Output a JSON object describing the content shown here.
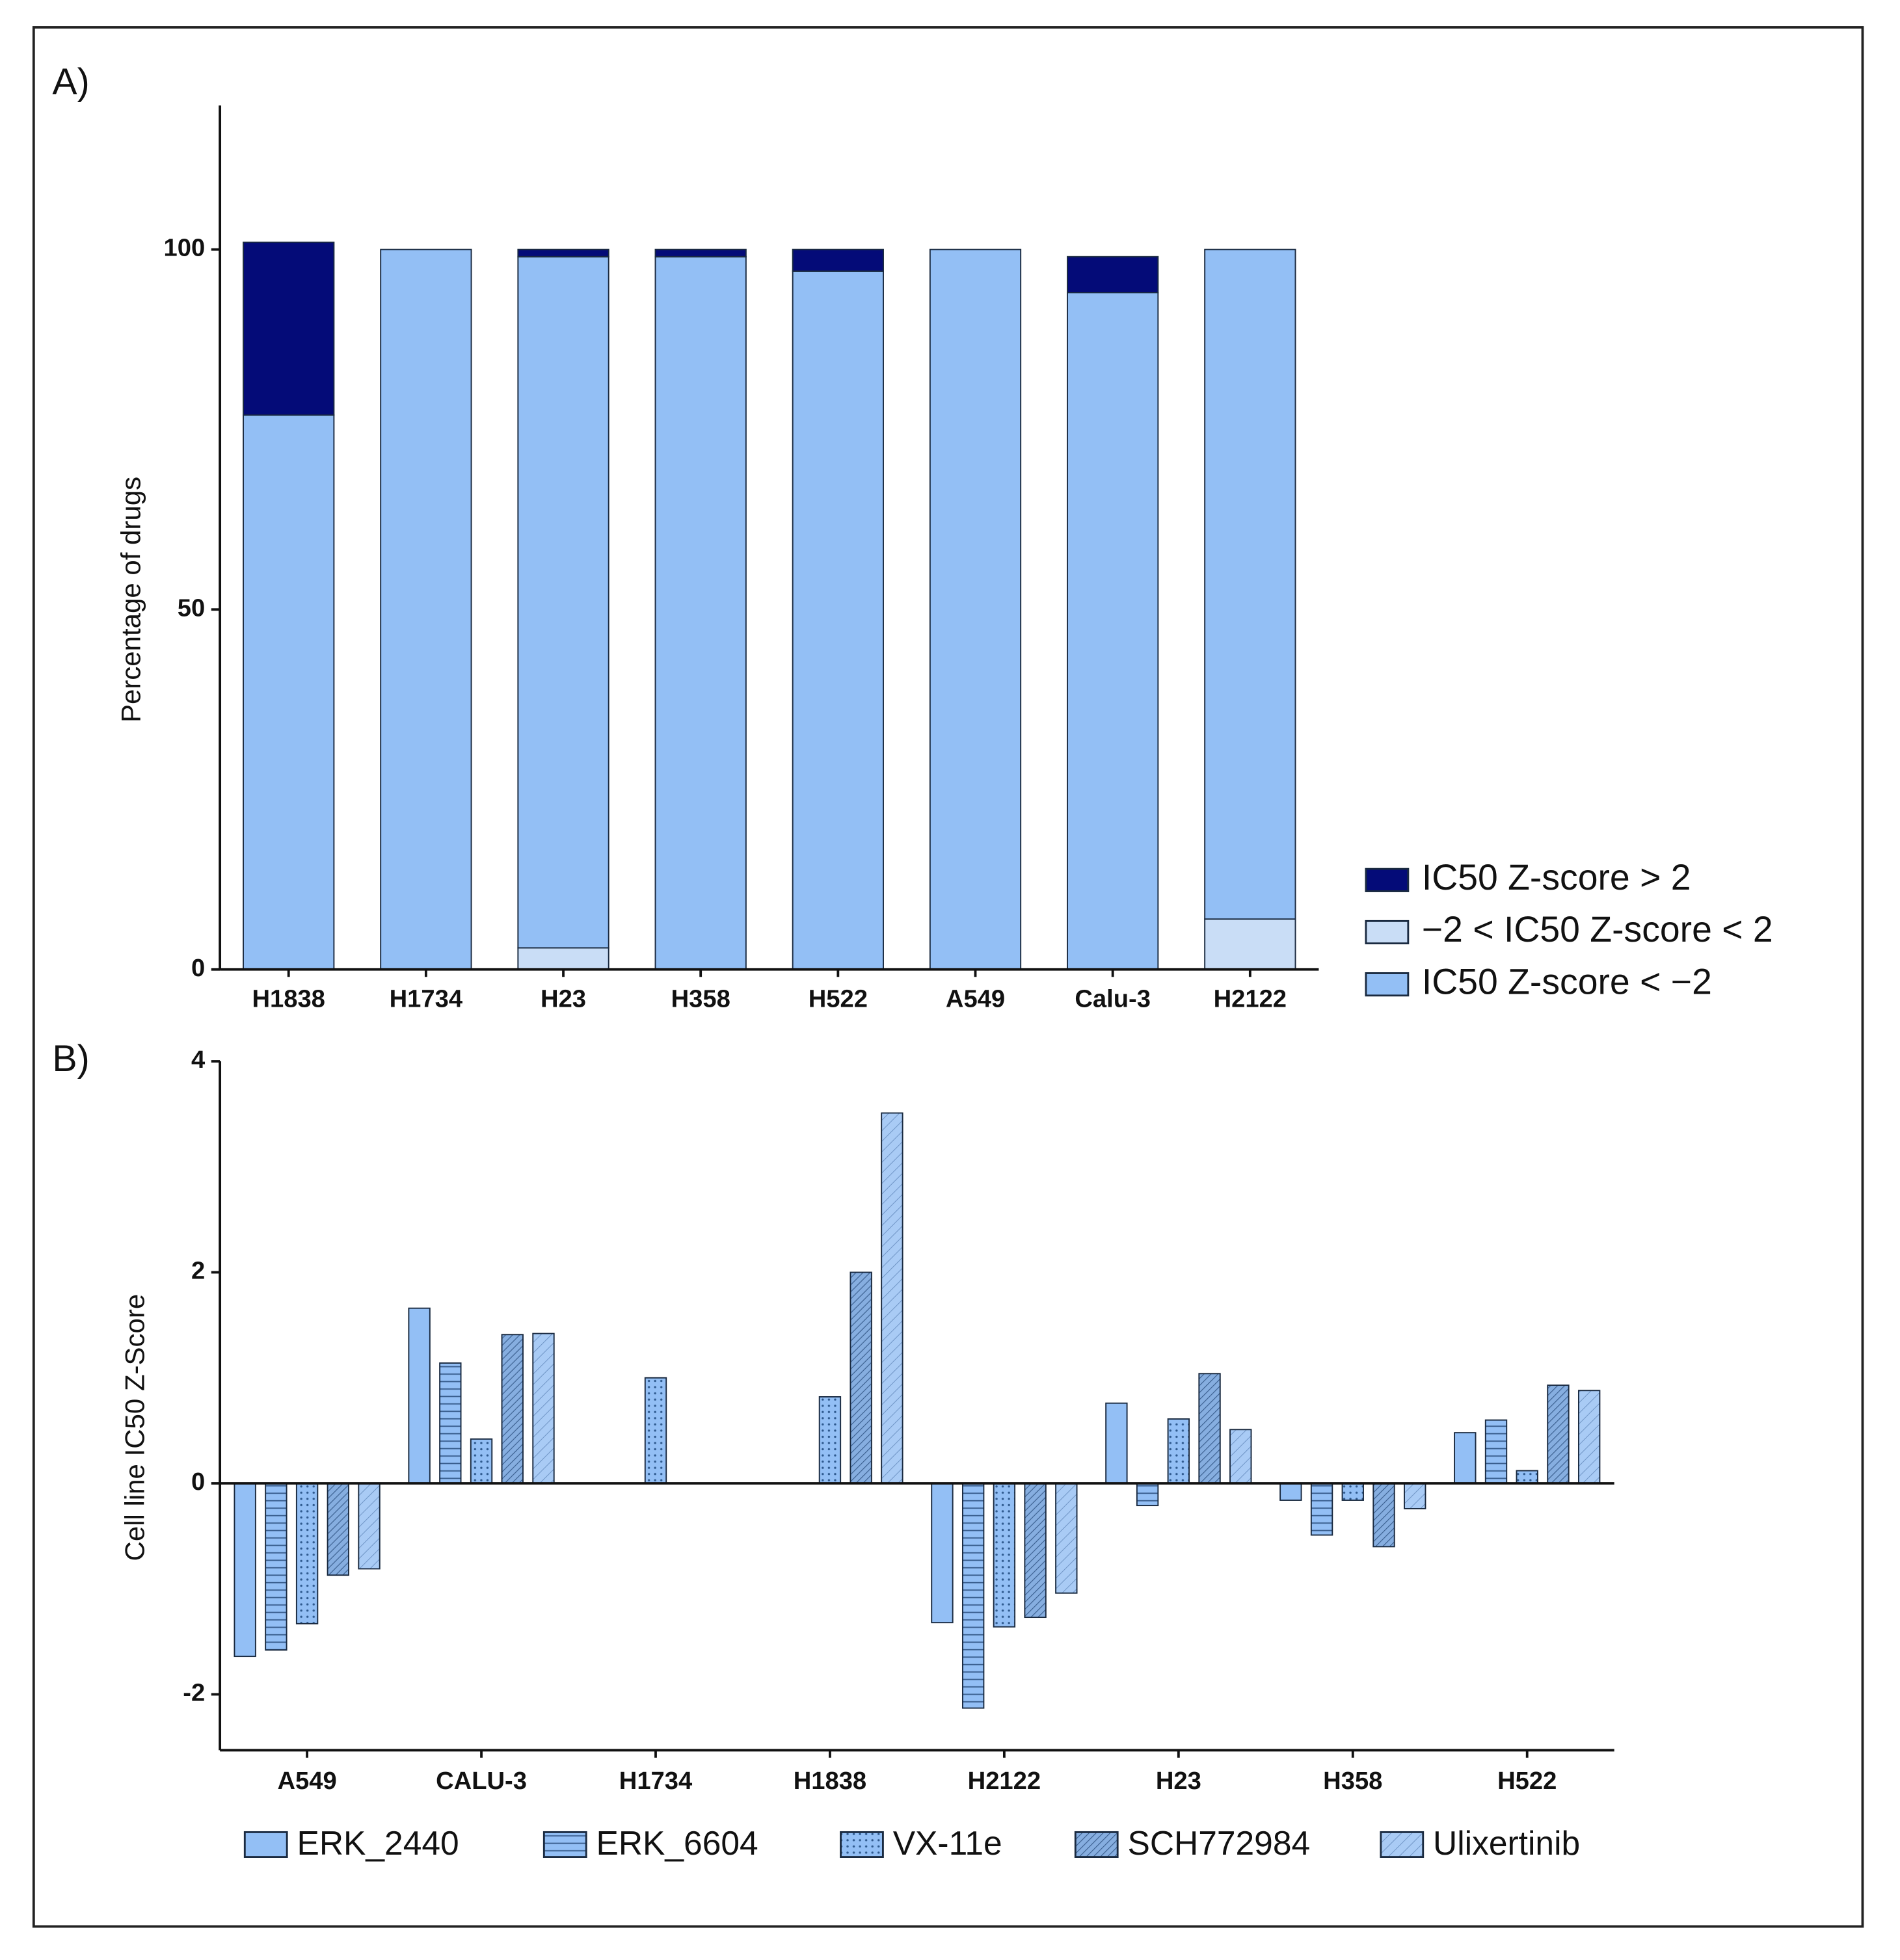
{
  "chart_data": [
    {
      "type": "stacked-bar",
      "panel_label": "A)",
      "y_label": "Percentage of drugs",
      "categories": [
        "H1838",
        "H1734",
        "H23",
        "H358",
        "H522",
        "A549",
        "Calu-3",
        "H2122"
      ],
      "ylim": [
        0,
        120
      ],
      "yticks": [
        0,
        50,
        100
      ],
      "legend": "right",
      "series": [
        {
          "name": "−2 < IC50 Z-score < 2",
          "color": "#c9ddf6",
          "values": [
            0,
            0,
            3,
            0,
            0,
            0,
            0,
            7
          ]
        },
        {
          "name": "IC50 Z-score < −2",
          "color": "#93bff5",
          "values": [
            77,
            100,
            96,
            99,
            97,
            100,
            94,
            93
          ]
        },
        {
          "name": "IC50 Z-score > 2",
          "color": "#040b78",
          "values": [
            24,
            0,
            1,
            1,
            3,
            0,
            5,
            0
          ]
        }
      ]
    },
    {
      "type": "grouped-bar",
      "panel_label": "B)",
      "y_label": "Cell line IC50 Z-Score",
      "categories": [
        "A549",
        "CALU-3",
        "H1734",
        "H1838",
        "H2122",
        "H23",
        "H358",
        "H522"
      ],
      "ylim": [
        -2.5,
        4
      ],
      "yticks": [
        -2,
        0,
        2,
        4
      ],
      "legend": "bottom",
      "series": [
        {
          "name": "ERK_2440",
          "color": "#93bff5",
          "pattern": "solid",
          "values": [
            -1.64,
            1.66,
            0,
            0,
            -1.32,
            0.76,
            -0.16,
            0.48
          ]
        },
        {
          "name": "ERK_6604",
          "color": "#93bff5",
          "pattern": "hlines",
          "values": [
            -1.58,
            1.14,
            0,
            0,
            -2.13,
            -0.21,
            -0.49,
            0.6
          ]
        },
        {
          "name": "VX-11e",
          "color": "#93bff5",
          "pattern": "dots",
          "values": [
            -1.33,
            0.42,
            1.0,
            0.82,
            -1.36,
            0.61,
            -0.16,
            0.12
          ]
        },
        {
          "name": "SCH772984",
          "color": "#86aee0",
          "pattern": "dense-diagonal",
          "values": [
            -0.87,
            1.41,
            0,
            2.0,
            -1.27,
            1.04,
            -0.6,
            0.93
          ]
        },
        {
          "name": "Ulixertinib",
          "color": "#a9cbf5",
          "pattern": "diagonal",
          "values": [
            -0.81,
            1.42,
            0,
            3.51,
            -1.04,
            0.51,
            -0.24,
            0.88
          ]
        }
      ]
    }
  ]
}
